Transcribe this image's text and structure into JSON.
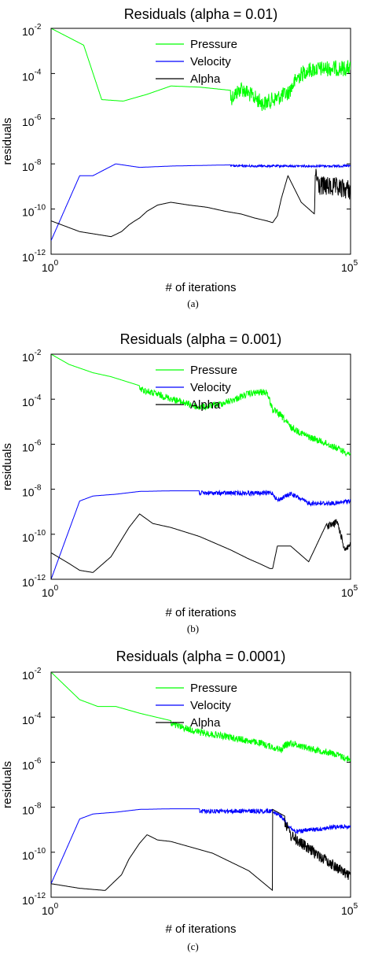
{
  "chart_data": [
    {
      "type": "line",
      "title": "Residuals (alpha = 0.01)",
      "xlabel": "# of iterations",
      "ylabel": "residuals",
      "caption": "(a)",
      "xscale": "log",
      "yscale": "log",
      "xlim": [
        1,
        100000
      ],
      "ylim": [
        1e-12,
        0.01
      ],
      "x_ticks": [
        {
          "base": "10",
          "exp": "0"
        },
        {
          "base": "10",
          "exp": "5"
        }
      ],
      "y_ticks": [
        {
          "base": "10",
          "exp": "-2"
        },
        {
          "base": "10",
          "exp": "-4"
        },
        {
          "base": "10",
          "exp": "-6"
        },
        {
          "base": "10",
          "exp": "-8"
        },
        {
          "base": "10",
          "exp": "-10"
        },
        {
          "base": "10",
          "exp": "-12"
        }
      ],
      "legend_position": "top-center",
      "series": [
        {
          "name": "Pressure",
          "color": "#00ff00",
          "x": [
            1,
            3.5,
            7,
            16,
            40,
            100,
            300,
            1000,
            1500,
            3500,
            9000,
            13000,
            18000,
            28000,
            50000,
            100000
          ],
          "y": [
            0.01,
            0.0018,
            7e-06,
            6e-06,
            1.2e-05,
            2.8e-05,
            2.5e-05,
            1.8e-05,
            5e-05,
            1e-05,
            3e-05,
            0.00015,
            0.0003,
            0.00035,
            0.00038,
            0.00038
          ],
          "noise_from": 1000,
          "noise_decades": 0.7
        },
        {
          "name": "Velocity",
          "color": "#0000ff",
          "x": [
            1,
            3,
            5,
            12,
            30,
            100,
            300,
            1000,
            5000,
            100000
          ],
          "y": [
            4e-12,
            3e-09,
            3e-09,
            1e-08,
            7e-09,
            8e-09,
            8.5e-09,
            9e-09,
            9e-09,
            9e-09
          ],
          "noise_from": 1000,
          "noise_decades": 0.1
        },
        {
          "name": "Alpha",
          "color": "#000000",
          "x": [
            1,
            3,
            10,
            15,
            20,
            25,
            30,
            40,
            60,
            100,
            200,
            400,
            800,
            1500,
            2500,
            4000,
            5000,
            6000,
            7000,
            9000,
            15000,
            25000,
            26000,
            30000,
            100000
          ],
          "y": [
            3e-11,
            1e-11,
            6e-12,
            1e-11,
            2e-11,
            3e-11,
            4e-11,
            8e-11,
            1.5e-10,
            2e-10,
            1.5e-10,
            1.2e-10,
            8e-11,
            6e-11,
            4e-11,
            3e-11,
            2.5e-11,
            5e-11,
            3e-10,
            3e-09,
            2e-10,
            6e-11,
            1e-08,
            3e-09,
            2e-09
          ],
          "noise_from": 26000,
          "noise_decades": 0.9
        }
      ]
    },
    {
      "type": "line",
      "title": "Residuals (alpha = 0.001)",
      "xlabel": "# of iterations",
      "ylabel": "residuals",
      "caption": "(b)",
      "xscale": "log",
      "yscale": "log",
      "xlim": [
        1,
        100000
      ],
      "ylim": [
        1e-12,
        0.01
      ],
      "x_ticks": [
        {
          "base": "10",
          "exp": "0"
        },
        {
          "base": "10",
          "exp": "5"
        }
      ],
      "y_ticks": [
        {
          "base": "10",
          "exp": "-2"
        },
        {
          "base": "10",
          "exp": "-4"
        },
        {
          "base": "10",
          "exp": "-6"
        },
        {
          "base": "10",
          "exp": "-8"
        },
        {
          "base": "10",
          "exp": "-10"
        },
        {
          "base": "10",
          "exp": "-12"
        }
      ],
      "legend_position": "top-center",
      "series": [
        {
          "name": "Pressure",
          "color": "#00ff00",
          "x": [
            1,
            2,
            5,
            10,
            30,
            100,
            300,
            600,
            1000,
            2000,
            4000,
            5000,
            7000,
            10000,
            20000,
            40000,
            100000
          ],
          "y": [
            0.01,
            0.0035,
            0.0015,
            0.001,
            0.0004,
            0.00015,
            6e-05,
            8e-05,
            0.00012,
            0.00025,
            0.0003,
            5e-05,
            2.5e-05,
            8e-06,
            3e-06,
            1.5e-06,
            5e-07
          ],
          "noise_from": 30,
          "noise_decades": 0.3
        },
        {
          "name": "Velocity",
          "color": "#0000ff",
          "x": [
            1,
            3,
            5,
            12,
            30,
            100,
            300,
            1000,
            5000,
            6000,
            10000,
            20000,
            60000,
            100000
          ],
          "y": [
            1e-12,
            3e-09,
            5e-09,
            6e-09,
            8e-09,
            8.5e-09,
            8.5e-09,
            8.5e-09,
            8.5e-09,
            4e-09,
            8e-09,
            3e-09,
            3e-09,
            4e-09
          ],
          "noise_from": 300,
          "noise_decades": 0.2
        },
        {
          "name": "Alpha",
          "color": "#000000",
          "x": [
            1,
            2,
            3,
            5,
            10,
            20,
            30,
            50,
            100,
            300,
            1000,
            2000,
            3000,
            4500,
            5000,
            6000,
            10000,
            20000,
            40000,
            60000,
            80000,
            100000
          ],
          "y": [
            1.5e-11,
            5e-12,
            2.5e-12,
            2e-12,
            1e-11,
            2e-10,
            8e-10,
            3e-10,
            2e-10,
            8e-11,
            2e-11,
            8e-12,
            5e-12,
            3e-12,
            3e-12,
            3e-11,
            3e-11,
            6e-12,
            3e-10,
            5e-10,
            3e-11,
            5e-11
          ],
          "noise_from": 40000,
          "noise_decades": 0.3
        }
      ]
    },
    {
      "type": "line",
      "title": "Residuals (alpha = 0.0001)",
      "xlabel": "# of iterations",
      "ylabel": "residuals",
      "caption": "(c)",
      "xscale": "log",
      "yscale": "log",
      "xlim": [
        1,
        100000
      ],
      "ylim": [
        1e-12,
        0.01
      ],
      "x_ticks": [
        {
          "base": "10",
          "exp": "0"
        },
        {
          "base": "10",
          "exp": "5"
        }
      ],
      "y_ticks": [
        {
          "base": "10",
          "exp": "-2"
        },
        {
          "base": "10",
          "exp": "-4"
        },
        {
          "base": "10",
          "exp": "-6"
        },
        {
          "base": "10",
          "exp": "-8"
        },
        {
          "base": "10",
          "exp": "-10"
        },
        {
          "base": "10",
          "exp": "-12"
        }
      ],
      "legend_position": "top-center",
      "series": [
        {
          "name": "Pressure",
          "color": "#00ff00",
          "x": [
            1,
            3,
            6,
            12,
            30,
            100,
            300,
            1000,
            3000,
            7000,
            8000,
            10000,
            20000,
            50000,
            100000
          ],
          "y": [
            0.01,
            0.0006,
            0.0003,
            0.0003,
            0.00015,
            7e-05,
            3e-05,
            1.8e-05,
            1e-05,
            5e-06,
            8e-06,
            1e-05,
            6e-06,
            3.5e-06,
            1.8e-06
          ],
          "noise_from": 100,
          "noise_decades": 0.3
        },
        {
          "name": "Velocity",
          "color": "#0000ff",
          "x": [
            1,
            3,
            5,
            12,
            30,
            100,
            300,
            1000,
            5000,
            7000,
            9000,
            12000,
            20000,
            50000,
            100000
          ],
          "y": [
            4e-12,
            3e-09,
            5e-09,
            6e-09,
            8e-09,
            8.5e-09,
            8.5e-09,
            8.5e-09,
            8.5e-09,
            5e-09,
            2e-09,
            1e-09,
            1.2e-09,
            1.6e-09,
            1.8e-09
          ],
          "noise_from": 300,
          "noise_decades": 0.2
        },
        {
          "name": "Alpha",
          "color": "#000000",
          "x": [
            1,
            3,
            8,
            15,
            20,
            30,
            40,
            60,
            100,
            500,
            2000,
            5000,
            5001,
            8000,
            10000,
            20000,
            100000
          ],
          "y": [
            4e-12,
            2.5e-12,
            2e-12,
            1e-11,
            5e-11,
            2.5e-10,
            6e-10,
            3.5e-10,
            3e-10,
            9e-11,
            1.5e-11,
            2e-12,
            8e-09,
            4e-09,
            1e-09,
            2.5e-10,
            1.5e-11
          ],
          "noise_from": 8000,
          "noise_decades": 0.5
        }
      ]
    }
  ]
}
